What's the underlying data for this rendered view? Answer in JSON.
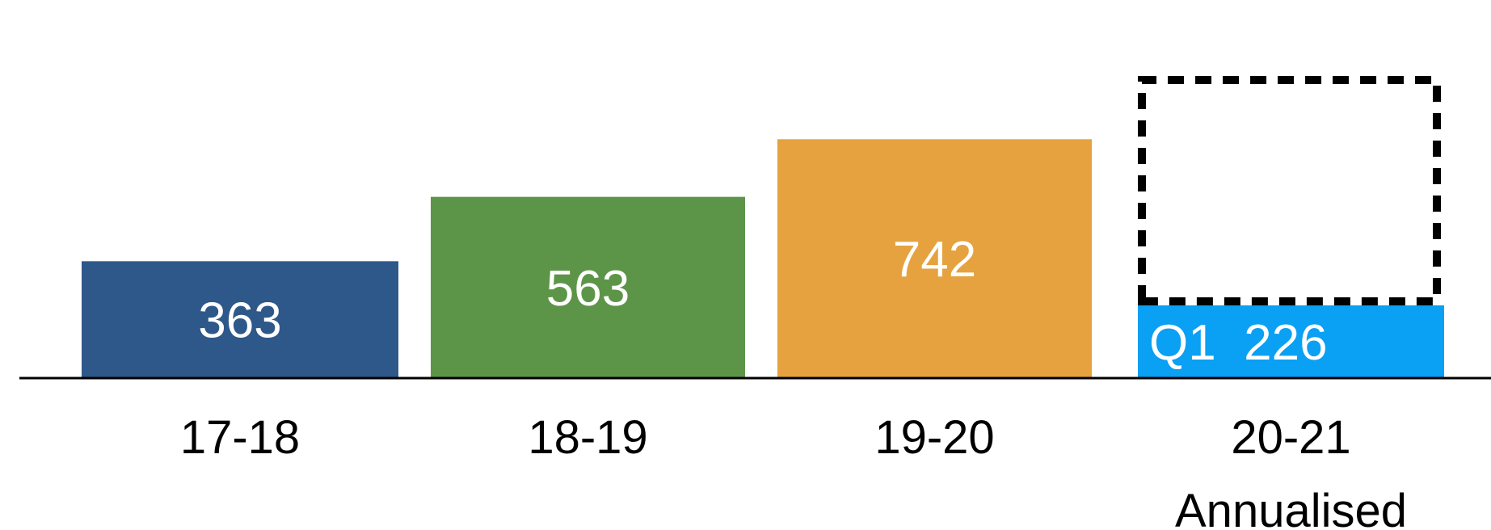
{
  "chart_data": {
    "type": "bar",
    "title": "",
    "xlabel": "",
    "ylabel": "",
    "categories": [
      "17-18",
      "18-19",
      "19-20",
      "20-21"
    ],
    "category_sublabels": [
      "",
      "",
      "",
      "Annualised"
    ],
    "values": [
      363,
      563,
      742,
      226
    ],
    "value_labels": [
      "363",
      "563",
      "742",
      "Q1  226"
    ],
    "projected_outline": {
      "category": "20-21",
      "value": 926,
      "style": "dashed"
    },
    "ylim": [
      0,
      960
    ],
    "grid": false,
    "colors": [
      "#2e5889",
      "#5d9548",
      "#e5a23e",
      "#0aa0f3"
    ],
    "outline_color": "#000000",
    "axis_color": "#000000"
  }
}
